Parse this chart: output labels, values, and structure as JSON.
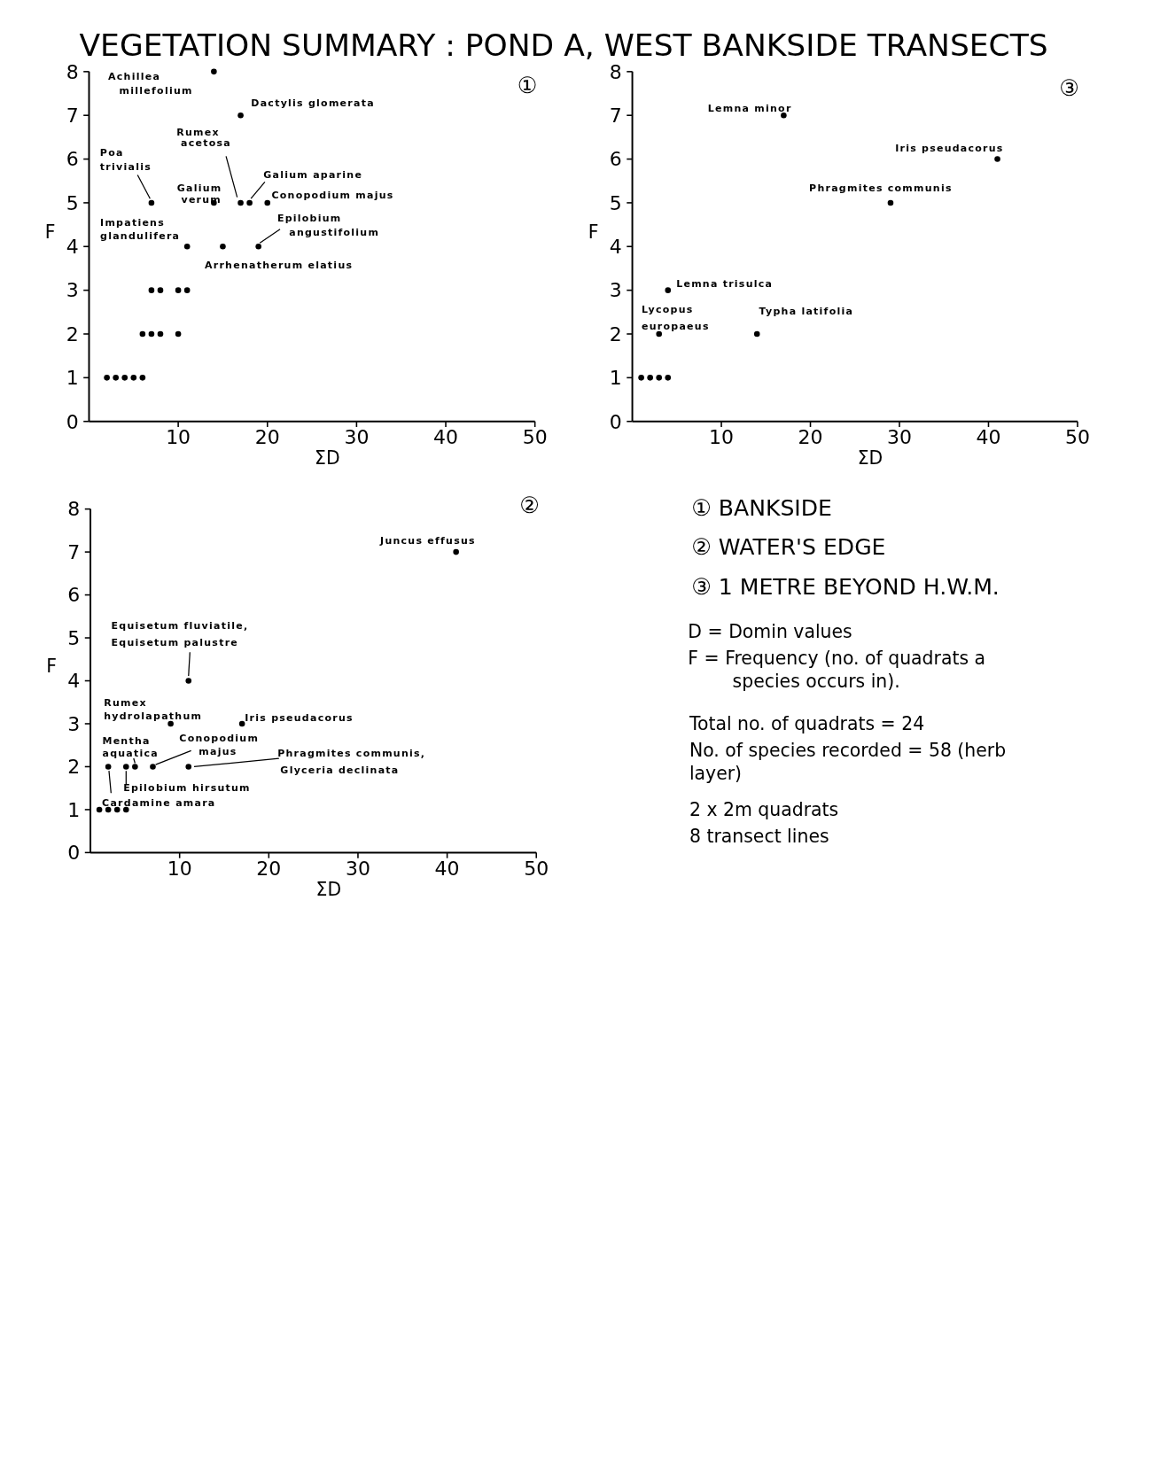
{
  "chart_data": [
    {
      "type": "scatter",
      "title": "VEGETATION SUMMARY : POND A, WEST BANKSIDE TRANSECTS",
      "xlabel": "ΣD",
      "ylabel": "F",
      "color": "#000000",
      "marker": "circle",
      "x": [
        14,
        17,
        7,
        14,
        17,
        18,
        20,
        19,
        15,
        11,
        11,
        10,
        8,
        7,
        10,
        8,
        7,
        6,
        6,
        5,
        4,
        3,
        2
      ],
      "values": [
        8,
        7,
        5,
        5,
        5,
        5,
        5,
        4,
        4,
        4,
        3,
        3,
        3,
        3,
        2,
        2,
        2,
        2,
        1,
        1,
        1,
        1,
        1
      ],
      "xlim": [
        0,
        50
      ],
      "xticks": [
        10,
        20,
        30,
        40,
        50
      ],
      "ylim": [
        0,
        8
      ],
      "yticks": [
        0,
        1,
        2,
        3,
        4,
        5,
        6,
        7,
        8
      ],
      "annotations": [
        "①",
        {
          "text": "Achillea millefolium",
          "x": 14,
          "y": 8
        },
        {
          "text": "Dactylis glomerata",
          "x": 17,
          "y": 7
        },
        {
          "text": "Poa trivialis",
          "x": 7,
          "y": 5
        },
        {
          "text": "Galium verum",
          "x": 14,
          "y": 5
        },
        {
          "text": "Rumex acetosa",
          "x": 17,
          "y": 5
        },
        {
          "text": "Galium aparine",
          "x": 18,
          "y": 5
        },
        {
          "text": "Conopodium majus",
          "x": 20,
          "y": 5
        },
        {
          "text": "Epilobium angustifolium",
          "x": 19,
          "y": 4
        },
        {
          "text": "Arrhenatherum elatius",
          "x": 15,
          "y": 4
        },
        {
          "text": "Impatiens glandulifera",
          "x": 11,
          "y": 4
        }
      ]
    },
    {
      "type": "scatter",
      "xlabel": "ΣD",
      "ylabel": "F",
      "color": "#000000",
      "marker": "circle",
      "x": [
        17,
        41,
        29,
        14,
        4,
        3,
        4,
        3,
        2,
        1
      ],
      "values": [
        7,
        6,
        5,
        2,
        3,
        2,
        1,
        1,
        1,
        1
      ],
      "xlim": [
        0,
        50
      ],
      "xticks": [
        10,
        20,
        30,
        40,
        50
      ],
      "ylim": [
        0,
        8
      ],
      "yticks": [
        0,
        1,
        2,
        3,
        4,
        5,
        6,
        7,
        8
      ],
      "annotations": [
        "③",
        {
          "text": "Lemna minor",
          "x": 17,
          "y": 7
        },
        {
          "text": "Iris pseudacorus",
          "x": 41,
          "y": 6
        },
        {
          "text": "Phragmites communis",
          "x": 29,
          "y": 5
        },
        {
          "text": "Typha latifolia",
          "x": 14,
          "y": 2
        },
        {
          "text": "Lemna trisulca",
          "x": 4,
          "y": 3
        },
        {
          "text": "Lycopus europaeus",
          "x": 3,
          "y": 2
        }
      ]
    },
    {
      "type": "scatter",
      "xlabel": "ΣD",
      "ylabel": "F",
      "color": "#000000",
      "marker": "circle",
      "x": [
        41,
        11,
        9,
        17,
        7,
        5,
        11,
        4,
        2,
        4,
        3,
        2,
        1
      ],
      "values": [
        7,
        4,
        3,
        3,
        2,
        2,
        2,
        2,
        2,
        1,
        1,
        1,
        1
      ],
      "xlim": [
        0,
        50
      ],
      "xticks": [
        10,
        20,
        30,
        40,
        50
      ],
      "ylim": [
        0,
        8
      ],
      "yticks": [
        0,
        1,
        2,
        3,
        4,
        5,
        6,
        7,
        8
      ],
      "annotations": [
        "②",
        {
          "text": "Juncus effusus",
          "x": 41,
          "y": 7
        },
        {
          "text": "Equisetum fluviatile, Equisetum palustre",
          "x": 11,
          "y": 4
        },
        {
          "text": "Rumex hydrolapathum",
          "x": 9,
          "y": 3
        },
        {
          "text": "Iris pseudacorus",
          "x": 17,
          "y": 3
        },
        {
          "text": "Conopodium majus",
          "x": 7,
          "y": 2
        },
        {
          "text": "Mentha aquatica",
          "x": 5,
          "y": 2
        },
        {
          "text": "Phragmites communis, Glyceria declinata",
          "x": 11,
          "y": 2
        },
        {
          "text": "Epilobium hirsutum",
          "x": 4,
          "y": 2
        },
        {
          "text": "Cardamine amara",
          "x": 2,
          "y": 2
        }
      ]
    },
    {
      "type": "other",
      "annotations": [
        "① BANKSIDE",
        "② WATER'S EDGE",
        "③ 1 METRE BEYOND H.W.M.",
        "D = Domin values",
        "F = Frequency (no. of quadrats a",
        "species occurs in).",
        "Total no. of quadrats = 24",
        "No. of species recorded = 58 (herb",
        "layer)",
        "2 x 2m quadrats",
        "8 transect lines"
      ]
    }
  ]
}
